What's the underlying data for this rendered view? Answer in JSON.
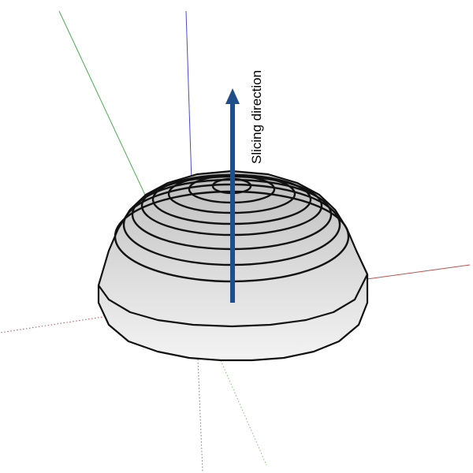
{
  "diagram": {
    "arrow_label": "Slicing direction",
    "colors": {
      "background": "#ffffff",
      "arrow": "#1f4e8c",
      "outline": "#111111",
      "dome_fill_top": "#c8c8c8",
      "dome_fill_bottom": "#f4f4f4",
      "axis_x": "#c0504d",
      "axis_y": "#4caf50",
      "axis_z": "#4a4acd"
    }
  }
}
